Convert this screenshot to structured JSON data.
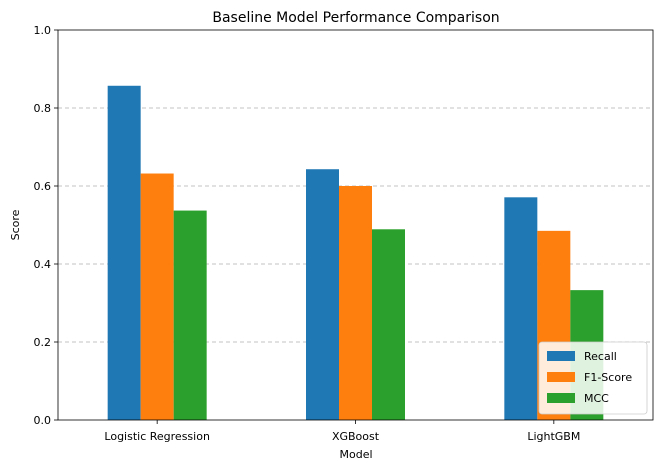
{
  "chart_data": {
    "type": "bar",
    "title": "Baseline Model Performance Comparison",
    "xlabel": "Model",
    "ylabel": "Score",
    "ylim": [
      0,
      1.0
    ],
    "yticks": [
      "0.0",
      "0.2",
      "0.4",
      "0.6",
      "0.8",
      "1.0"
    ],
    "grid": "y-dashed",
    "legend_position": "lower-right",
    "categories": [
      "Logistic Regression",
      "XGBoost",
      "LightGBM"
    ],
    "series": [
      {
        "name": "Recall",
        "color": "#1f77b4",
        "values": [
          0.857,
          0.643,
          0.571
        ]
      },
      {
        "name": "F1-Score",
        "color": "#ff7f0e",
        "values": [
          0.632,
          0.6,
          0.485
        ]
      },
      {
        "name": "MCC",
        "color": "#2ca02c",
        "values": [
          0.537,
          0.489,
          0.333
        ]
      }
    ]
  }
}
